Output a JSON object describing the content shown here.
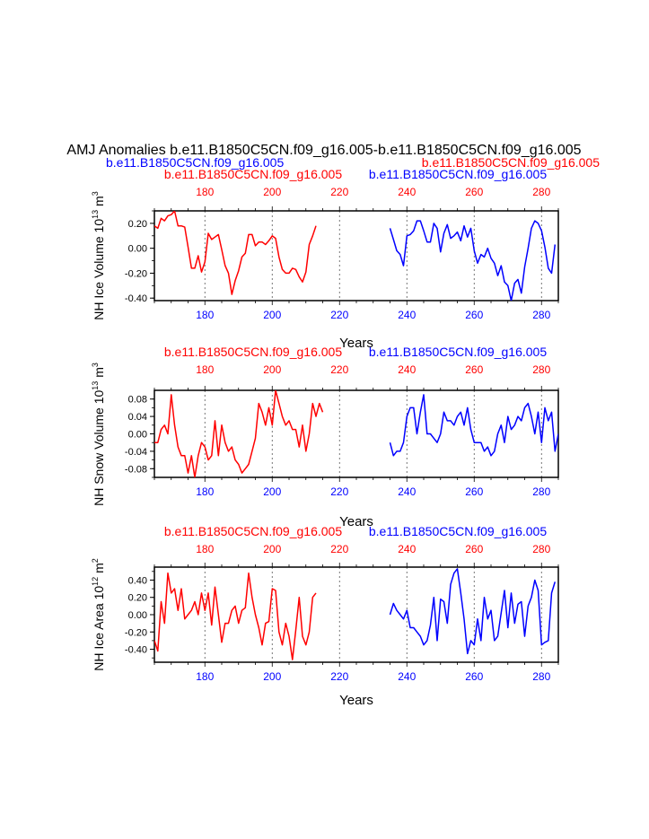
{
  "title": "AMJ Anomalies b.e11.B1850C5CN.f09_g16.005-b.e11.B1850C5CN.f09_g16.005",
  "subtitle_left": "b.e11.B1850C5CN.f09_g16.005",
  "subtitle_right": "b.e11.B1850C5CN.f09_g16.005",
  "colors": {
    "red": "#ff0000",
    "blue": "#0000ff",
    "axis": "#000000",
    "grid": "#555555"
  },
  "chart_data": [
    {
      "type": "line",
      "id": "ice-volume",
      "ylabel": "NH Ice Volume 10",
      "ylabel_exp": "13",
      "ylabel_unit": "m",
      "ylabel_unit_exp": "3",
      "xlabel": "Years",
      "xlim": [
        165,
        285
      ],
      "ylim": [
        -0.42,
        0.3
      ],
      "yticks": [
        -0.4,
        -0.2,
        0.0,
        0.2
      ],
      "ytick_labels": [
        "-0.40",
        "-0.20",
        "0.00",
        "0.20"
      ],
      "xticks": [
        180,
        200,
        220,
        240,
        260,
        280
      ],
      "xtick_labels": [
        "180",
        "200",
        "220",
        "240",
        "260",
        "280"
      ],
      "top_label_left": "b.e11.B1850C5CN.f09_g16.005",
      "top_label_right": "b.e11.B1850C5CN.f09_g16.005",
      "series": [
        {
          "name": "b.e11.B1850C5CN.f09_g16.005 (red)",
          "color": "red",
          "x_start": 165,
          "values": [
            0.18,
            0.16,
            0.24,
            0.22,
            0.26,
            0.27,
            0.3,
            0.18,
            0.18,
            0.17,
            0.01,
            -0.16,
            -0.16,
            -0.06,
            -0.19,
            -0.11,
            0.12,
            0.07,
            0.09,
            0.11,
            -0.01,
            -0.14,
            -0.2,
            -0.37,
            -0.26,
            -0.18,
            -0.07,
            -0.04,
            0.11,
            0.11,
            0.02,
            0.05,
            0.05,
            0.03,
            0.06,
            0.1,
            0.08,
            -0.07,
            -0.17,
            -0.2,
            -0.2,
            -0.16,
            -0.17,
            -0.23,
            -0.27,
            -0.19,
            0.03,
            0.1,
            0.18
          ]
        },
        {
          "name": "b.e11.B1850C5CN.f09_g16.005 (blue)",
          "color": "blue",
          "x_start": 235,
          "values": [
            0.16,
            0.07,
            -0.02,
            -0.05,
            -0.14,
            0.1,
            0.11,
            0.14,
            0.22,
            0.22,
            0.14,
            0.05,
            0.05,
            0.2,
            0.16,
            -0.03,
            0.12,
            0.19,
            0.08,
            0.1,
            0.13,
            0.06,
            0.18,
            0.09,
            0.16,
            -0.02,
            -0.12,
            -0.05,
            -0.07,
            0.0,
            -0.08,
            -0.12,
            -0.22,
            -0.14,
            -0.27,
            -0.3,
            -0.42,
            -0.28,
            -0.25,
            -0.36,
            -0.15,
            0.0,
            0.16,
            0.22,
            0.2,
            0.14,
            0.01,
            -0.16,
            -0.2,
            0.03
          ]
        }
      ]
    },
    {
      "type": "line",
      "id": "snow-volume",
      "ylabel": "NH Snow Volume 10",
      "ylabel_exp": "13",
      "ylabel_unit": "m",
      "ylabel_unit_exp": "3",
      "xlabel": "Years",
      "xlim": [
        165,
        285
      ],
      "ylim": [
        -0.1,
        0.1
      ],
      "yticks": [
        -0.08,
        -0.04,
        0.0,
        0.04,
        0.08
      ],
      "ytick_labels": [
        "-0.08",
        "-0.04",
        "0.00",
        "0.04",
        "0.08"
      ],
      "xticks": [
        180,
        200,
        220,
        240,
        260,
        280
      ],
      "xtick_labels": [
        "180",
        "200",
        "220",
        "240",
        "260",
        "280"
      ],
      "top_label_left": "b.e11.B1850C5CN.f09_g16.005",
      "top_label_right": "b.e11.B1850C5CN.f09_g16.005",
      "series": [
        {
          "name": "b.e11.B1850C5CN.f09_g16.005 (red)",
          "color": "red",
          "x_start": 165,
          "values": [
            -0.02,
            -0.02,
            0.01,
            0.02,
            0.0,
            0.09,
            0.02,
            -0.03,
            -0.05,
            -0.05,
            -0.09,
            -0.05,
            -0.1,
            -0.05,
            -0.02,
            -0.03,
            -0.06,
            -0.05,
            0.03,
            -0.05,
            0.02,
            -0.02,
            -0.04,
            -0.03,
            -0.06,
            -0.07,
            -0.09,
            -0.08,
            -0.07,
            -0.04,
            -0.01,
            0.07,
            0.05,
            0.02,
            0.06,
            0.02,
            0.1,
            0.07,
            0.04,
            0.02,
            0.03,
            0.01,
            0.01,
            -0.03,
            0.02,
            -0.04,
            0.0,
            0.07,
            0.04,
            0.07,
            0.05
          ]
        },
        {
          "name": "b.e11.B1850C5CN.f09_g16.005 (blue)",
          "color": "blue",
          "x_start": 235,
          "values": [
            -0.02,
            -0.05,
            -0.04,
            -0.04,
            -0.02,
            0.04,
            0.06,
            0.06,
            0.0,
            0.05,
            0.09,
            0.0,
            0.0,
            -0.01,
            -0.02,
            0.0,
            0.05,
            0.03,
            0.03,
            0.02,
            0.04,
            0.05,
            0.02,
            0.06,
            0.01,
            -0.02,
            -0.02,
            -0.02,
            -0.04,
            -0.03,
            -0.05,
            -0.04,
            0.0,
            0.02,
            -0.02,
            0.04,
            0.01,
            0.02,
            0.04,
            0.03,
            0.06,
            0.07,
            0.04,
            0.0,
            0.05,
            -0.02,
            0.06,
            0.03,
            0.05,
            -0.04,
            0.0
          ]
        }
      ]
    },
    {
      "type": "line",
      "id": "ice-area",
      "ylabel": "NH Ice Area 10",
      "ylabel_exp": "12",
      "ylabel_unit": "m",
      "ylabel_unit_exp": "2",
      "xlabel": "Years",
      "xlim": [
        165,
        285
      ],
      "ylim": [
        -0.55,
        0.55
      ],
      "yticks": [
        -0.4,
        -0.2,
        0.0,
        0.2,
        0.4
      ],
      "ytick_labels": [
        "-0.40",
        "-0.20",
        "0.00",
        "0.20",
        "0.40"
      ],
      "xticks": [
        180,
        200,
        220,
        240,
        260,
        280
      ],
      "xtick_labels": [
        "180",
        "200",
        "220",
        "240",
        "260",
        "280"
      ],
      "top_label_left": "b.e11.B1850C5CN.f09_g16.005",
      "top_label_right": "b.e11.B1850C5CN.f09_g16.005",
      "series": [
        {
          "name": "b.e11.B1850C5CN.f09_g16.005 (red)",
          "color": "red",
          "x_start": 165,
          "values": [
            -0.3,
            -0.42,
            0.15,
            -0.1,
            0.48,
            0.25,
            0.3,
            0.05,
            0.3,
            -0.05,
            0.0,
            0.05,
            0.15,
            0.0,
            0.25,
            0.05,
            0.25,
            -0.12,
            0.32,
            0.0,
            -0.32,
            -0.1,
            -0.1,
            0.05,
            0.1,
            -0.1,
            0.05,
            0.08,
            0.48,
            0.2,
            0.0,
            -0.15,
            -0.35,
            -0.1,
            -0.08,
            0.3,
            0.28,
            -0.2,
            -0.35,
            -0.1,
            -0.25,
            -0.52,
            -0.18,
            0.2,
            -0.25,
            -0.35,
            -0.2,
            0.2,
            0.25
          ]
        },
        {
          "name": "b.e11.B1850C5CN.f09_g16.005 (blue)",
          "color": "blue",
          "x_start": 235,
          "values": [
            0.0,
            0.13,
            0.05,
            0.0,
            -0.05,
            0.05,
            -0.15,
            -0.15,
            -0.2,
            -0.25,
            -0.35,
            -0.3,
            -0.12,
            0.2,
            -0.3,
            0.18,
            0.15,
            -0.1,
            0.35,
            0.48,
            0.53,
            0.25,
            -0.05,
            -0.45,
            -0.3,
            -0.35,
            -0.05,
            -0.3,
            0.2,
            -0.05,
            0.05,
            -0.3,
            -0.25,
            0.02,
            0.28,
            -0.15,
            0.25,
            -0.1,
            0.12,
            0.15,
            -0.25,
            0.1,
            0.2,
            0.4,
            0.28,
            -0.35,
            -0.32,
            -0.3,
            0.25,
            0.38
          ]
        }
      ]
    }
  ]
}
